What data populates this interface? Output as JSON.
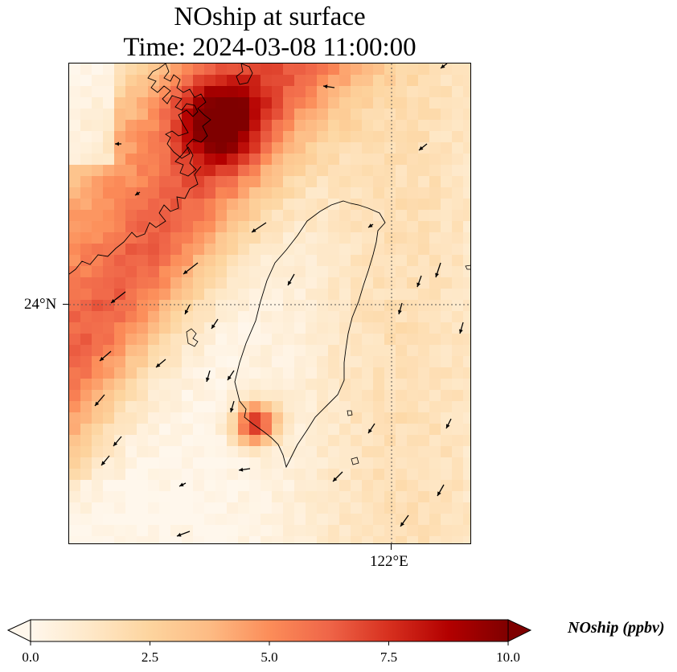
{
  "title": {
    "line1": "NOship at surface",
    "line2": "Time: 2024-03-08 11:00:00"
  },
  "map": {
    "lat_label": "24°N",
    "lon_label": "122°E",
    "gridlines": "dotted",
    "coastline_color": "#000000",
    "wind_vector_color": "#000000"
  },
  "colorbar": {
    "label": "NOship (ppbv)",
    "ticks": [
      "0.0",
      "2.5",
      "5.0",
      "7.5",
      "10.0"
    ],
    "min": 0,
    "max": 10,
    "extend": "both",
    "colormap": "OrRd",
    "stops": [
      "#fff7ec",
      "#fee8c8",
      "#fdd49e",
      "#fdbb84",
      "#fc8d59",
      "#ef6548",
      "#d7301f",
      "#b30000",
      "#7f0000"
    ]
  }
}
